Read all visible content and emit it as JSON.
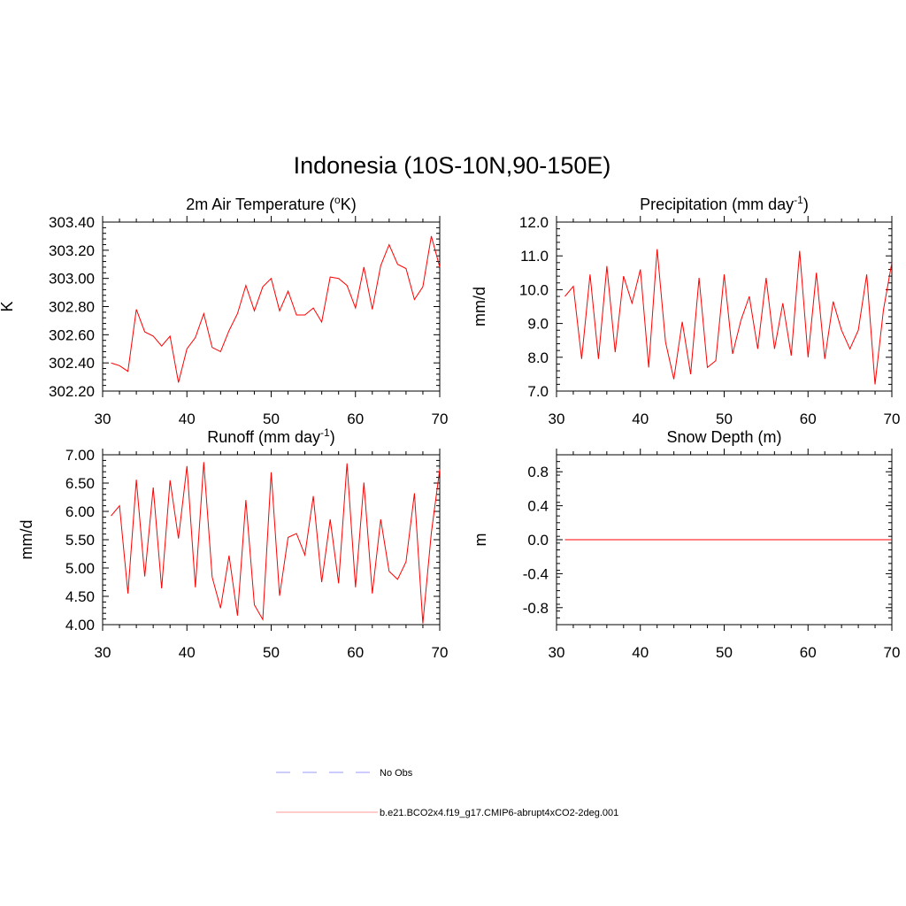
{
  "figure": {
    "title": "Indonesia (10S-10N,90-150E)"
  },
  "chart_data": [
    {
      "type": "line",
      "title": "2m Air Temperature (",
      "title_super": "o",
      "title_after": "K)",
      "ylabel": "K",
      "xlabel": "",
      "xlim": [
        30,
        70
      ],
      "ylim": [
        302.2,
        303.4
      ],
      "xticks": [
        30,
        40,
        50,
        60,
        70
      ],
      "yticks": [
        302.2,
        302.4,
        302.6,
        302.8,
        303.0,
        303.2,
        303.4
      ],
      "ytick_labels": [
        "302.20",
        "302.40",
        "302.60",
        "302.80",
        "303.00",
        "303.20",
        "303.40"
      ],
      "color": "#ff0000",
      "x": [
        31,
        32,
        33,
        34,
        35,
        36,
        37,
        38,
        39,
        40,
        41,
        42,
        43,
        44,
        45,
        46,
        47,
        48,
        49,
        50,
        51,
        52,
        53,
        54,
        55,
        56,
        57,
        58,
        59,
        60,
        61,
        62,
        63,
        64,
        65,
        66,
        67,
        68,
        69,
        70
      ],
      "y": [
        302.4,
        302.38,
        302.34,
        302.78,
        302.62,
        302.59,
        302.52,
        302.59,
        302.26,
        302.5,
        302.58,
        302.75,
        302.51,
        302.48,
        302.63,
        302.75,
        302.95,
        302.77,
        302.94,
        303.0,
        302.77,
        302.91,
        302.74,
        302.74,
        302.79,
        302.69,
        303.01,
        303.0,
        302.95,
        302.79,
        303.08,
        302.78,
        303.09,
        303.24,
        303.1,
        303.07,
        302.85,
        302.94,
        303.3,
        303.08
      ]
    },
    {
      "type": "line",
      "title": "Precipitation (mm day",
      "title_super": "-1",
      "title_after": ")",
      "ylabel": "mm/d",
      "xlabel": "",
      "xlim": [
        30,
        70
      ],
      "ylim": [
        7.0,
        12.0
      ],
      "xticks": [
        30,
        40,
        50,
        60,
        70
      ],
      "yticks": [
        7.0,
        8.0,
        9.0,
        10.0,
        11.0,
        12.0
      ],
      "ytick_labels": [
        "7.0",
        "8.0",
        "9.0",
        "10.0",
        "11.0",
        "12.0"
      ],
      "color": "#ff0000",
      "x": [
        31,
        32,
        33,
        34,
        35,
        36,
        37,
        38,
        39,
        40,
        41,
        42,
        43,
        44,
        45,
        46,
        47,
        48,
        49,
        50,
        51,
        52,
        53,
        54,
        55,
        56,
        57,
        58,
        59,
        60,
        61,
        62,
        63,
        64,
        65,
        66,
        67,
        68,
        69,
        70
      ],
      "y": [
        9.8,
        10.1,
        7.95,
        10.45,
        7.95,
        10.7,
        8.15,
        10.4,
        9.6,
        10.6,
        7.7,
        11.2,
        8.45,
        7.35,
        9.05,
        7.5,
        10.35,
        7.7,
        7.9,
        10.45,
        8.1,
        9.1,
        9.8,
        8.25,
        10.35,
        8.25,
        9.6,
        8.05,
        11.15,
        8.0,
        10.5,
        7.95,
        9.65,
        8.8,
        8.25,
        8.8,
        10.45,
        7.2,
        9.4,
        10.8
      ]
    },
    {
      "type": "line",
      "title": "Runoff (mm day",
      "title_super": "-1",
      "title_after": ")",
      "ylabel": "mm/d",
      "xlabel": "",
      "xlim": [
        30,
        70
      ],
      "ylim": [
        4.0,
        7.0
      ],
      "xticks": [
        30,
        40,
        50,
        60,
        70
      ],
      "yticks": [
        4.0,
        4.5,
        5.0,
        5.5,
        6.0,
        6.5,
        7.0
      ],
      "ytick_labels": [
        "4.00",
        "4.50",
        "5.00",
        "5.50",
        "6.00",
        "6.50",
        "7.00"
      ],
      "color": "#ff0000",
      "x": [
        31,
        32,
        33,
        34,
        35,
        36,
        37,
        38,
        39,
        40,
        41,
        42,
        43,
        44,
        45,
        46,
        47,
        48,
        49,
        50,
        51,
        52,
        53,
        54,
        55,
        56,
        57,
        58,
        59,
        60,
        61,
        62,
        63,
        64,
        65,
        66,
        67,
        68,
        69,
        70
      ],
      "y": [
        5.92,
        6.1,
        4.55,
        6.56,
        4.85,
        6.42,
        4.64,
        6.55,
        5.52,
        6.8,
        4.66,
        6.87,
        4.84,
        4.29,
        5.22,
        4.16,
        6.2,
        4.35,
        4.09,
        6.69,
        4.51,
        5.54,
        5.61,
        5.23,
        6.27,
        4.75,
        5.86,
        4.73,
        6.85,
        4.66,
        6.51,
        4.55,
        5.86,
        4.94,
        4.8,
        5.11,
        6.32,
        4.02,
        5.62,
        6.74
      ]
    },
    {
      "type": "line",
      "title": "Snow Depth (m)",
      "title_super": "",
      "title_after": "",
      "ylabel": "m",
      "xlabel": "",
      "xlim": [
        30,
        70
      ],
      "ylim": [
        -1.0,
        1.0
      ],
      "xticks": [
        30,
        40,
        50,
        60,
        70
      ],
      "yticks": [
        -0.8,
        -0.4,
        0.0,
        0.4,
        0.8
      ],
      "ytick_labels": [
        "-0.8",
        "-0.4",
        "0.0",
        "0.4",
        "0.8"
      ],
      "color": "#ff0000",
      "x": [
        31,
        70
      ],
      "y": [
        0.0,
        0.0
      ]
    }
  ],
  "legend": {
    "placement": "bottom-center",
    "items": [
      {
        "label": "No Obs",
        "color": "#9999ff",
        "style": "dashed"
      },
      {
        "label": "b.e21.BCO2x4.f19_g17.CMIP6-abrupt4xCO2-2deg.001",
        "color": "#ff9999",
        "style": "solid"
      }
    ]
  }
}
